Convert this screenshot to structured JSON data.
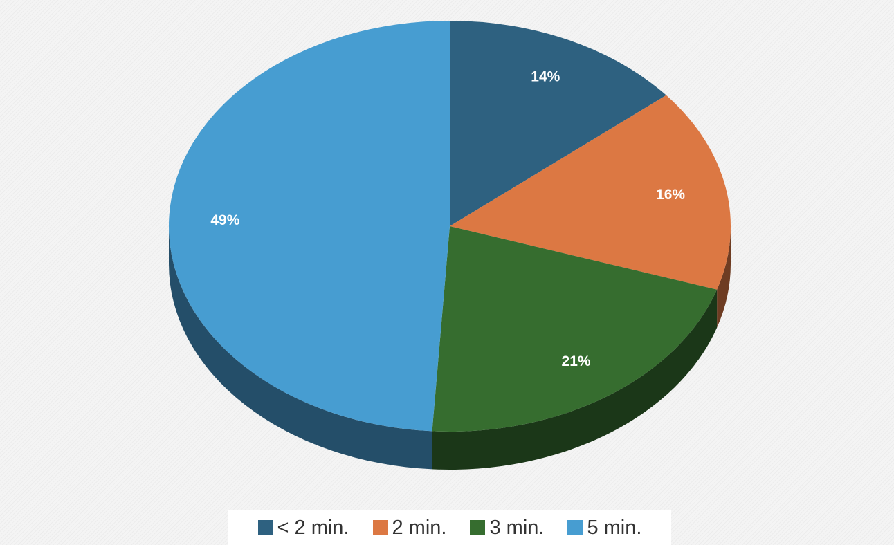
{
  "chart_data": {
    "type": "pie",
    "categories": [
      "< 2 min.",
      "2 min.",
      "3 min.",
      "5 min."
    ],
    "values": [
      14,
      16,
      21,
      49
    ],
    "value_labels": [
      "14%",
      "16%",
      "21%",
      "49%"
    ],
    "colors": [
      "#2e6180",
      "#dc7843",
      "#366d2f",
      "#479dd1"
    ],
    "legend": "bottom"
  }
}
